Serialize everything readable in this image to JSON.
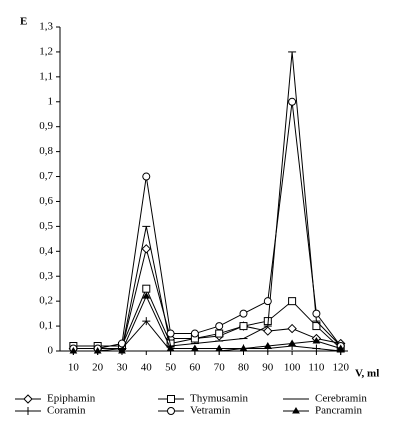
{
  "chart_data": {
    "type": "line",
    "y_label": "E",
    "x_label": "V, ml",
    "x": [
      10,
      20,
      30,
      40,
      50,
      60,
      70,
      80,
      90,
      100,
      110,
      120
    ],
    "xlim": [
      4.5,
      123
    ],
    "xticks": [
      10,
      20,
      30,
      40,
      50,
      60,
      70,
      80,
      90,
      100,
      110,
      120
    ],
    "ylim": [
      0,
      1.3
    ],
    "yticks": [
      0,
      {
        "value": 0.1,
        "label": "0,1"
      },
      {
        "value": 0.2,
        "label": "0,2"
      },
      {
        "value": 0.3,
        "label": "0,3"
      },
      {
        "value": 0.4,
        "label": "0,4"
      },
      {
        "value": 0.5,
        "label": "0,5"
      },
      {
        "value": 0.6,
        "label": "0,6"
      },
      {
        "value": 0.7,
        "label": "0,7"
      },
      {
        "value": 0.8,
        "label": "0,8"
      },
      {
        "value": 0.9,
        "label": "0,9"
      },
      1,
      {
        "value": 1.1,
        "label": "1,1"
      },
      {
        "value": 1.2,
        "label": "1,2"
      },
      {
        "value": 1.3,
        "label": "1,3"
      }
    ],
    "grid": false,
    "series": [
      {
        "name": "Epiphamin",
        "color": "#000000",
        "marker": "diamond",
        "values": [
          0.01,
          0.01,
          0.01,
          0.41,
          0.05,
          0.05,
          0.06,
          0.1,
          0.08,
          0.09,
          0.05,
          0.03
        ]
      },
      {
        "name": "Thymusamin",
        "color": "#000000",
        "marker": "square",
        "values": [
          0.02,
          0.02,
          0.02,
          0.25,
          0.03,
          0.05,
          0.07,
          0.1,
          0.12,
          0.2,
          0.1,
          0.01
        ]
      },
      {
        "name": "Cerebramin",
        "color": "#000000",
        "marker": "dash",
        "values": [
          0.01,
          0.01,
          0.01,
          0.5,
          0.02,
          0.03,
          0.04,
          0.05,
          0.1,
          1.2,
          0.12,
          0.02
        ]
      },
      {
        "name": "Coramin",
        "color": "#000000",
        "marker": "plus",
        "values": [
          0,
          0,
          0.01,
          0.12,
          0,
          0,
          0,
          0.01,
          0.01,
          0.02,
          0.01,
          0
        ]
      },
      {
        "name": "Vetramin",
        "color": "#000000",
        "marker": "circle",
        "values": [
          0.01,
          0.01,
          0.03,
          0.7,
          0.07,
          0.07,
          0.1,
          0.15,
          0.2,
          1.0,
          0.15,
          0.02
        ]
      },
      {
        "name": "Pancramin",
        "color": "#000000",
        "marker": "triangle",
        "values": [
          0,
          0,
          0,
          0.22,
          0.01,
          0.01,
          0.01,
          0.01,
          0.02,
          0.03,
          0.04,
          0.01
        ]
      }
    ]
  }
}
